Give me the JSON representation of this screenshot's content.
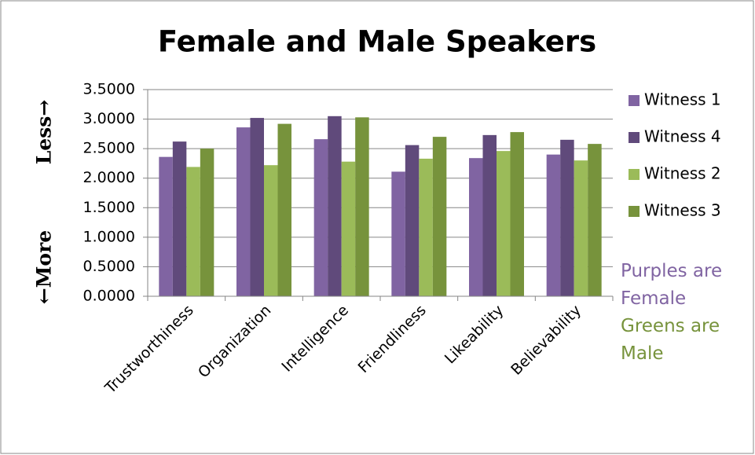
{
  "chart_data": {
    "type": "bar",
    "title": "Female and Male Speakers",
    "y_axis_label_top": "Less→",
    "y_axis_label_bottom": "←More",
    "categories": [
      "Trustworthiness",
      "Organization",
      "Intelligence",
      "Friendliness",
      "Likeability",
      "Believability"
    ],
    "series": [
      {
        "name": "Witness 1",
        "color": "#8064a2",
        "values": [
          2.36,
          2.86,
          2.66,
          2.11,
          2.34,
          2.4
        ]
      },
      {
        "name": "Witness 4",
        "color": "#604a7b",
        "values": [
          2.62,
          3.02,
          3.05,
          2.56,
          2.73,
          2.65
        ]
      },
      {
        "name": "Witness 2",
        "color": "#9bbb59",
        "values": [
          2.19,
          2.22,
          2.28,
          2.33,
          2.46,
          2.3
        ]
      },
      {
        "name": "Witness 3",
        "color": "#77933c",
        "values": [
          2.5,
          2.92,
          3.03,
          2.7,
          2.78,
          2.58
        ]
      }
    ],
    "ylim": [
      0,
      3.5
    ],
    "yticks": [
      {
        "value": 0,
        "label": "0.0000"
      },
      {
        "value": 0.5,
        "label": "0.5000"
      },
      {
        "value": 1,
        "label": "1.0000"
      },
      {
        "value": 1.5,
        "label": "1.5000"
      },
      {
        "value": 2,
        "label": "2.0000"
      },
      {
        "value": 2.5,
        "label": "2.5000"
      },
      {
        "value": 3,
        "label": "3.0000"
      },
      {
        "value": 3.5,
        "label": "3.5000"
      }
    ],
    "grid": true,
    "legend": "right",
    "annotations": [
      {
        "text": "Purples are Female",
        "color": "#8064a2"
      },
      {
        "text": "Greens are Male",
        "color": "#77933c"
      }
    ]
  }
}
